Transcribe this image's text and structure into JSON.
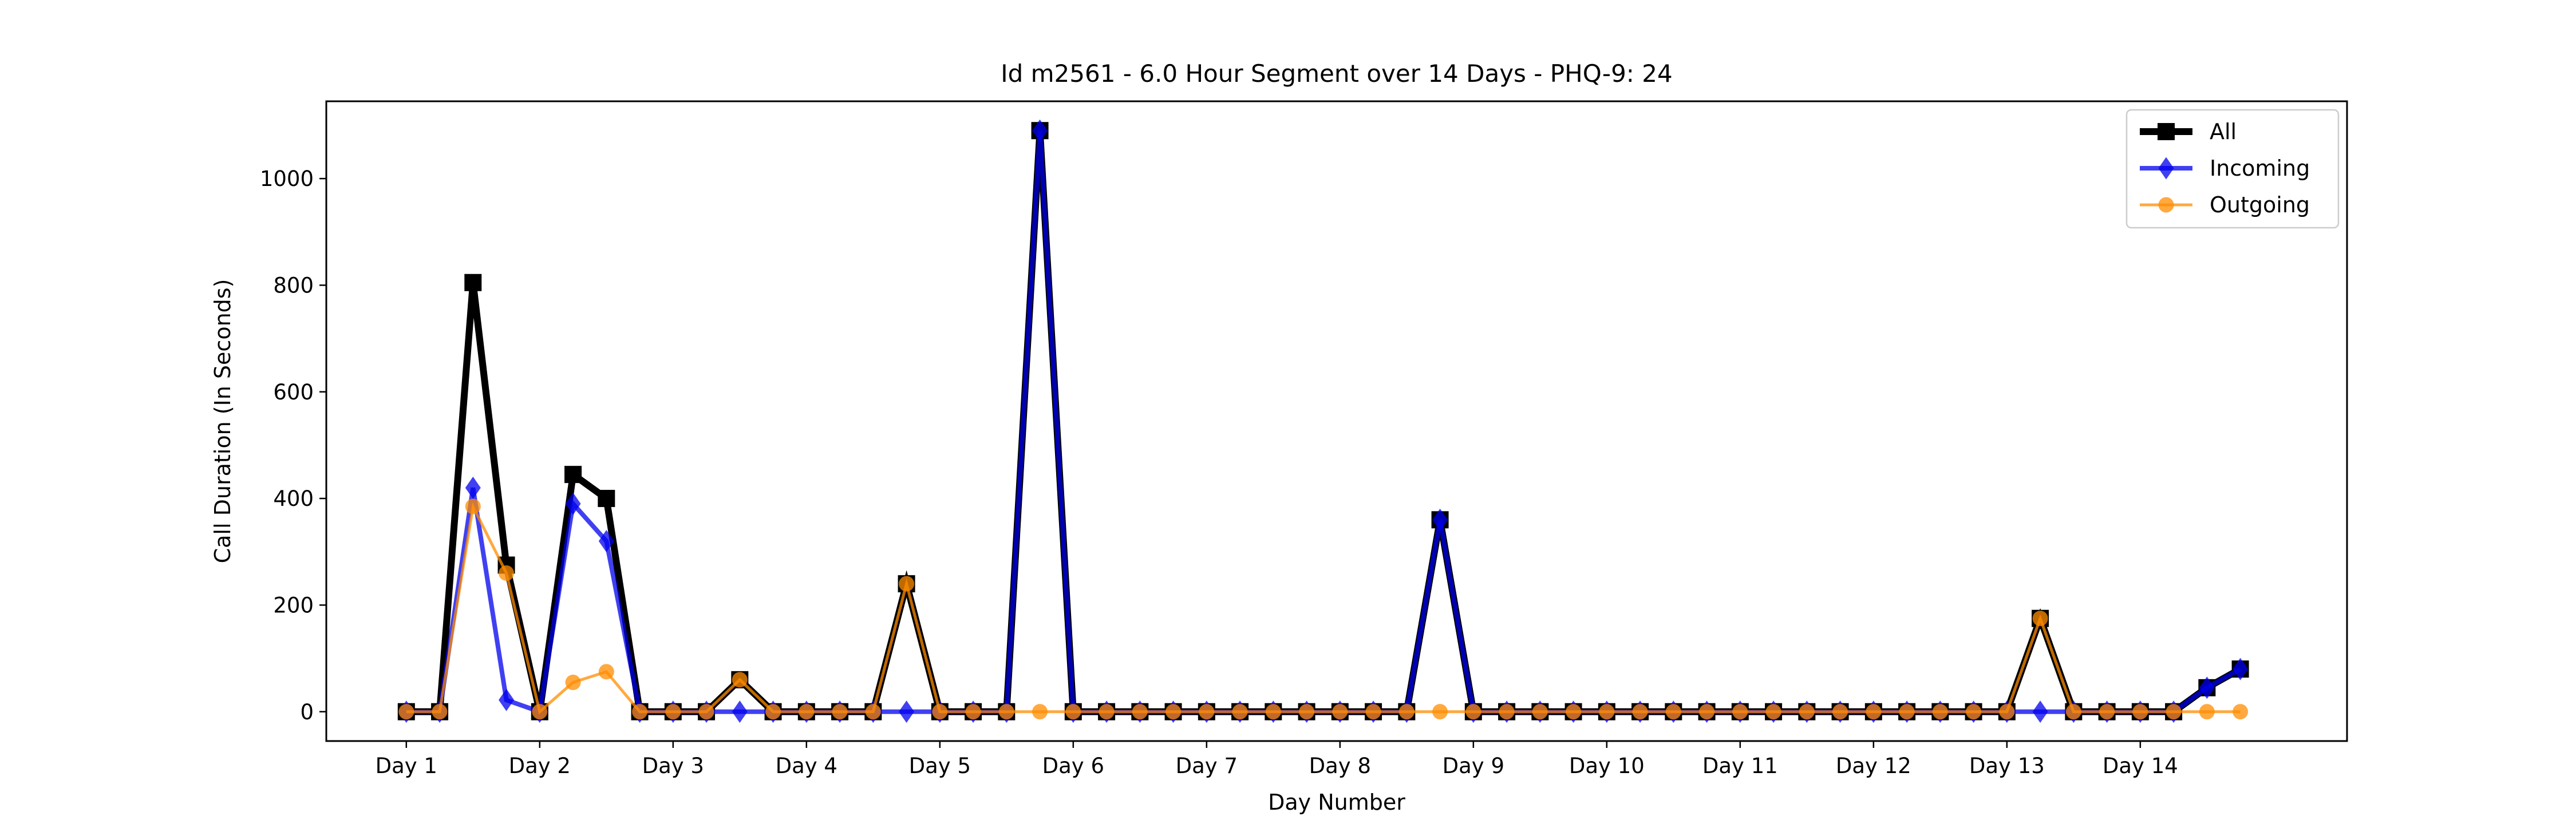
{
  "chart_data": {
    "type": "line",
    "title": "Id m2561 - 6.0 Hour Segment over 14 Days - PHQ-9: 24",
    "xlabel": "Day Number",
    "ylabel": "Call Duration (In Seconds)",
    "xlim": [
      -0.6,
      14.55
    ],
    "ylim": [
      -55,
      1145
    ],
    "yticks": [
      0,
      200,
      400,
      600,
      800,
      1000
    ],
    "xticks": [
      0,
      1,
      2,
      3,
      4,
      5,
      6,
      7,
      8,
      9,
      10,
      11,
      12,
      13
    ],
    "xtick_labels": [
      "Day 1",
      "Day 2",
      "Day 3",
      "Day 4",
      "Day 5",
      "Day 6",
      "Day 7",
      "Day 8",
      "Day 9",
      "Day 10",
      "Day 11",
      "Day 12",
      "Day 13",
      "Day 14"
    ],
    "x": [
      0,
      0.25,
      0.5,
      0.75,
      1,
      1.25,
      1.5,
      1.75,
      2,
      2.25,
      2.5,
      2.75,
      3,
      3.25,
      3.5,
      3.75,
      4,
      4.25,
      4.5,
      4.75,
      5,
      5.25,
      5.5,
      5.75,
      6,
      6.25,
      6.5,
      6.75,
      7,
      7.25,
      7.5,
      7.75,
      8,
      8.25,
      8.5,
      8.75,
      9,
      9.25,
      9.5,
      9.75,
      10,
      10.25,
      10.5,
      10.75,
      11,
      11.25,
      11.5,
      11.75,
      12,
      12.25,
      12.5,
      12.75,
      13,
      13.25,
      13.5,
      13.75
    ],
    "legend_position": "top-right",
    "series": [
      {
        "name": "All",
        "color": "#000000",
        "marker": "square",
        "values": [
          0,
          0,
          805,
          275,
          0,
          445,
          400,
          0,
          0,
          0,
          60,
          0,
          0,
          0,
          0,
          240,
          0,
          0,
          0,
          1090,
          0,
          0,
          0,
          0,
          0,
          0,
          0,
          0,
          0,
          0,
          0,
          360,
          0,
          0,
          0,
          0,
          0,
          0,
          0,
          0,
          0,
          0,
          0,
          0,
          0,
          0,
          0,
          0,
          0,
          175,
          0,
          0,
          0,
          0,
          45,
          80
        ]
      },
      {
        "name": "Incoming",
        "color": "#0000ee",
        "marker": "diamond",
        "values": [
          0,
          0,
          420,
          22,
          0,
          390,
          320,
          0,
          0,
          0,
          0,
          0,
          0,
          0,
          0,
          0,
          0,
          0,
          0,
          1090,
          0,
          0,
          0,
          0,
          0,
          0,
          0,
          0,
          0,
          0,
          0,
          360,
          0,
          0,
          0,
          0,
          0,
          0,
          0,
          0,
          0,
          0,
          0,
          0,
          0,
          0,
          0,
          0,
          0,
          0,
          0,
          0,
          0,
          0,
          45,
          80
        ]
      },
      {
        "name": "Outgoing",
        "color": "#ff8c00",
        "marker": "circle",
        "values": [
          0,
          0,
          385,
          260,
          0,
          55,
          75,
          0,
          0,
          0,
          60,
          0,
          0,
          0,
          0,
          240,
          0,
          0,
          0,
          0,
          0,
          0,
          0,
          0,
          0,
          0,
          0,
          0,
          0,
          0,
          0,
          0,
          0,
          0,
          0,
          0,
          0,
          0,
          0,
          0,
          0,
          0,
          0,
          0,
          0,
          0,
          0,
          0,
          0,
          175,
          0,
          0,
          0,
          0,
          0,
          0
        ]
      }
    ]
  }
}
